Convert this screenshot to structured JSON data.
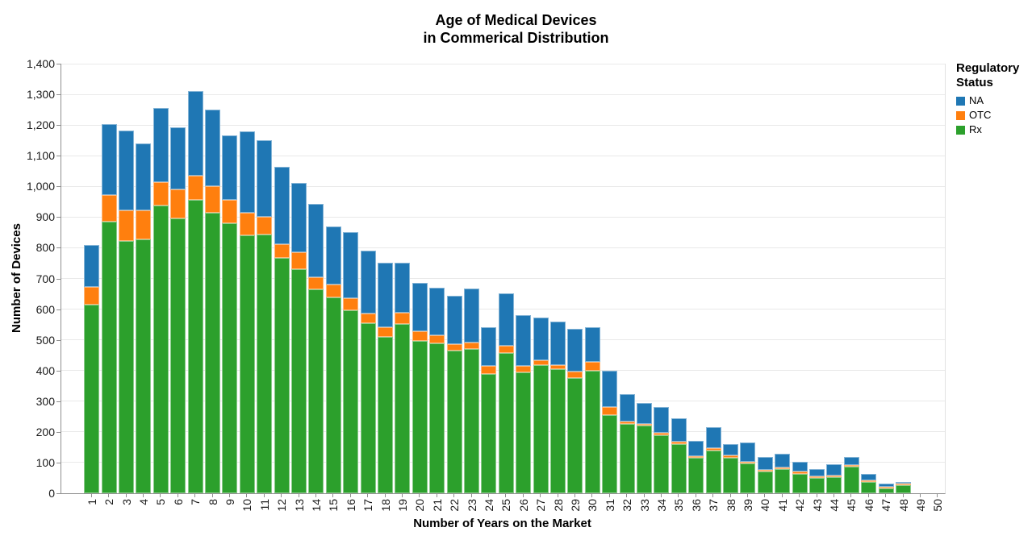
{
  "title": {
    "line1": "Age of Medical Devices",
    "line2": "in Commerical Distribution"
  },
  "axes": {
    "y": {
      "title": "Number of Devices",
      "ticks": [
        {
          "v": 0,
          "label": "0"
        },
        {
          "v": 100,
          "label": "100"
        },
        {
          "v": 200,
          "label": "200"
        },
        {
          "v": 300,
          "label": "300"
        },
        {
          "v": 400,
          "label": "400"
        },
        {
          "v": 500,
          "label": "500"
        },
        {
          "v": 600,
          "label": "600"
        },
        {
          "v": 700,
          "label": "700"
        },
        {
          "v": 800,
          "label": "800"
        },
        {
          "v": 900,
          "label": "900"
        },
        {
          "v": 1000,
          "label": "1,000"
        },
        {
          "v": 1100,
          "label": "1,100"
        },
        {
          "v": 1200,
          "label": "1,200"
        },
        {
          "v": 1300,
          "label": "1,300"
        },
        {
          "v": 1400,
          "label": "1,400"
        }
      ]
    },
    "x": {
      "title": "Number of Years on the Market",
      "labels": [
        "1",
        "2",
        "3",
        "4",
        "5",
        "6",
        "7",
        "8",
        "9",
        "10",
        "11",
        "12",
        "13",
        "14",
        "15",
        "16",
        "17",
        "18",
        "19",
        "20",
        "21",
        "22",
        "23",
        "24",
        "25",
        "26",
        "27",
        "28",
        "29",
        "30",
        "31",
        "32",
        "33",
        "34",
        "35",
        "36",
        "37",
        "38",
        "39",
        "40",
        "41",
        "42",
        "43",
        "44",
        "45",
        "46",
        "47",
        "48",
        "49",
        "50"
      ]
    }
  },
  "legend": {
    "title_line1": "Regulatory",
    "title_line2": "Status",
    "items": [
      {
        "label": "NA",
        "color": "#1F77B4"
      },
      {
        "label": "OTC",
        "color": "#FF7F0E"
      },
      {
        "label": "Rx",
        "color": "#2CA02C"
      }
    ]
  },
  "chart_data": {
    "type": "bar",
    "stacked": true,
    "title": "Age of Medical Devices in Commerical Distribution",
    "xlabel": "Number of Years on the Market",
    "ylabel": "Number of Devices",
    "ylim": [
      0,
      1400
    ],
    "grid": true,
    "legend_position": "right",
    "legend_title": "Regulatory Status",
    "categories": [
      1,
      2,
      3,
      4,
      5,
      6,
      7,
      8,
      9,
      10,
      11,
      12,
      13,
      14,
      15,
      16,
      17,
      18,
      19,
      20,
      21,
      22,
      23,
      24,
      25,
      26,
      27,
      28,
      29,
      30,
      31,
      32,
      33,
      34,
      35,
      36,
      37,
      38,
      39,
      40,
      41,
      42,
      43,
      44,
      45,
      46,
      47,
      48,
      49,
      50
    ],
    "stack_order_bottom_to_top": [
      "Rx",
      "OTC",
      "NA"
    ],
    "series": [
      {
        "name": "Rx",
        "color": "#2CA02C",
        "values": [
          615,
          885,
          823,
          828,
          937,
          895,
          956,
          915,
          880,
          840,
          843,
          766,
          731,
          665,
          639,
          595,
          553,
          510,
          552,
          497,
          489,
          464,
          471,
          390,
          458,
          394,
          418,
          404,
          375,
          400,
          255,
          225,
          220,
          188,
          160,
          115,
          138,
          115,
          96,
          70,
          80,
          64,
          50,
          52,
          88,
          38,
          15,
          28,
          0,
          0
        ]
      },
      {
        "name": "OTC",
        "color": "#FF7F0E",
        "values": [
          57,
          88,
          100,
          95,
          76,
          95,
          79,
          86,
          76,
          75,
          59,
          46,
          55,
          40,
          40,
          40,
          32,
          31,
          36,
          30,
          26,
          22,
          19,
          26,
          22,
          22,
          15,
          14,
          22,
          27,
          27,
          10,
          6,
          8,
          7,
          6,
          8,
          8,
          7,
          5,
          4,
          7,
          4,
          4,
          4,
          5,
          5,
          4,
          0,
          0
        ]
      },
      {
        "name": "NA",
        "color": "#1F77B4",
        "values": [
          138,
          230,
          260,
          217,
          242,
          203,
          275,
          249,
          210,
          265,
          248,
          253,
          224,
          238,
          191,
          217,
          205,
          209,
          162,
          158,
          155,
          157,
          178,
          124,
          172,
          164,
          139,
          142,
          140,
          115,
          118,
          87,
          69,
          84,
          78,
          51,
          69,
          37,
          62,
          43,
          46,
          31,
          24,
          39,
          25,
          20,
          11,
          6,
          0,
          0
        ]
      }
    ]
  }
}
